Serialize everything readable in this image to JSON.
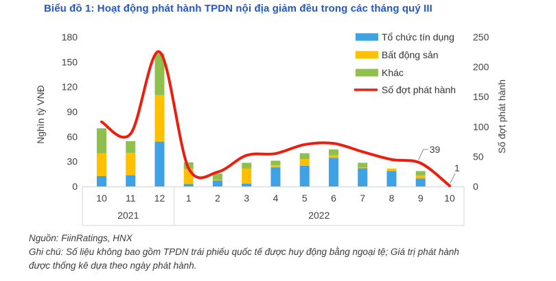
{
  "title": "Biểu đồ 1: Hoạt động phát hành TPDN nội địa giảm đều trong các tháng quý III",
  "footer": {
    "source": "Nguồn: FiinRatings, HNX",
    "note": "Ghi chú: Số liệu không bao gồm TPDN trái phiếu quốc tế được huy động bằng ngoại tệ; Giá trị phát hành được thống kê dựa theo ngày phát hành."
  },
  "colors": {
    "title": "#2456C4",
    "bar_blue": "#3FA2E4",
    "bar_orange": "#FFC000",
    "bar_green": "#8FBF4D",
    "line_red": "#EE1D0D",
    "axis_text": "#404040",
    "border": "#D8DCE3",
    "leader": "#8A8A8A"
  },
  "chart_data": {
    "type": "combo",
    "categories": [
      "10",
      "11",
      "12",
      "1",
      "2",
      "3",
      "4",
      "5",
      "6",
      "7",
      "8",
      "9",
      "10"
    ],
    "year_groups": [
      {
        "label": "2021",
        "span": 3
      },
      {
        "label": "2022",
        "span": 10
      }
    ],
    "left_axis": {
      "label": "Nghìn tỷ VNĐ",
      "ticks": [
        0,
        30,
        60,
        90,
        120,
        150,
        180
      ],
      "max": 180
    },
    "right_axis": {
      "label": "Số đợt phát hành",
      "ticks": [
        0,
        50,
        100,
        150,
        200,
        250
      ],
      "max": 250
    },
    "series": [
      {
        "name": "Tổ chức tín dụng",
        "type": "bar",
        "color_key": "bar_blue",
        "values": [
          12.5,
          13.5,
          54,
          3,
          7,
          3.5,
          23,
          25,
          34.5,
          22,
          18.5,
          9.5,
          0
        ]
      },
      {
        "name": "Bất động sản",
        "type": "bar",
        "color_key": "bar_orange",
        "values": [
          27.5,
          27,
          56,
          18,
          1,
          18,
          2.5,
          8,
          3,
          1,
          3,
          3.5,
          0
        ]
      },
      {
        "name": "Khác",
        "type": "bar",
        "color_key": "bar_green",
        "values": [
          30,
          14,
          50,
          8,
          7.5,
          7,
          5.5,
          7,
          7,
          5.5,
          0,
          5.5,
          0
        ]
      },
      {
        "name": "Số đợt phát hành",
        "type": "line",
        "color_key": "line_red",
        "values": [
          108,
          88,
          225,
          30,
          24,
          52,
          55,
          70,
          72,
          58,
          45,
          39,
          1
        ]
      }
    ],
    "annotations": [
      {
        "text": "39",
        "category_index": 11
      },
      {
        "text": "1",
        "category_index": 12
      }
    ],
    "legend_position": "top-right",
    "grid": false
  }
}
